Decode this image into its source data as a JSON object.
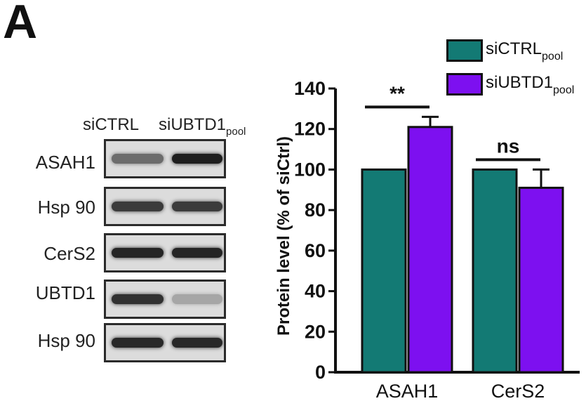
{
  "panel_letter": "A",
  "blot": {
    "header": {
      "ctrl": "siCTRL",
      "ubtd1": "siUBTD1",
      "ubtd1_sub": "pool"
    },
    "rows": [
      {
        "label": "ASAH1",
        "left_intensity": 0.55,
        "right_intensity": 0.95
      },
      {
        "label": "Hsp 90",
        "left_intensity": 0.8,
        "right_intensity": 0.8
      },
      {
        "label": "CerS2",
        "left_intensity": 0.92,
        "right_intensity": 0.92
      },
      {
        "label": "UBTD1",
        "left_intensity": 0.85,
        "right_intensity": 0.25
      },
      {
        "label": "Hsp 90",
        "left_intensity": 0.9,
        "right_intensity": 0.9
      }
    ]
  },
  "chart_data": {
    "type": "bar",
    "categories": [
      "ASAH1",
      "CerS2"
    ],
    "series": [
      {
        "name": "siCTRL",
        "name_sub": "pool",
        "color": "#137a74",
        "values": [
          100,
          100
        ],
        "errors": [
          0,
          0
        ]
      },
      {
        "name": "siUBTD1",
        "name_sub": "pool",
        "color": "#7d10f0",
        "values": [
          121,
          91
        ],
        "errors": [
          5,
          9
        ]
      }
    ],
    "ylabel": "Protein level (% of siCtrl)",
    "ylim": [
      0,
      140
    ],
    "yticks": [
      0,
      20,
      40,
      60,
      80,
      100,
      120,
      140
    ],
    "significance": [
      {
        "category": "ASAH1",
        "text": "**"
      },
      {
        "category": "CerS2",
        "text": "ns"
      }
    ],
    "grid": false,
    "legend_position": "top-right"
  }
}
